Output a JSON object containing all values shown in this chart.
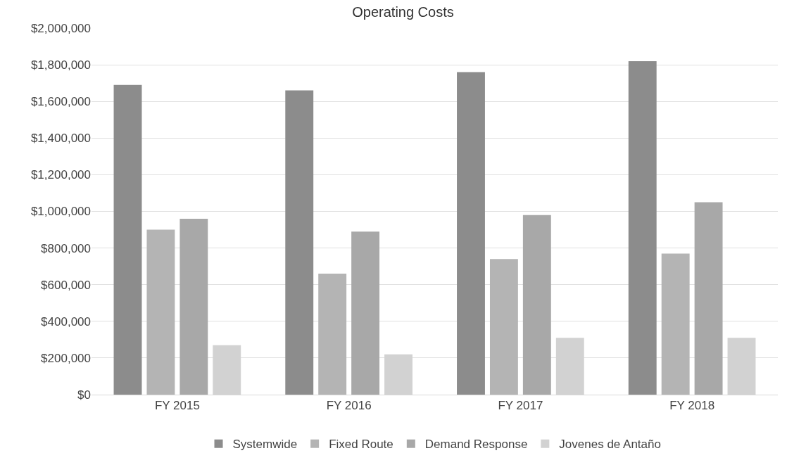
{
  "chart_data": {
    "type": "bar",
    "title": "Operating Costs",
    "categories": [
      "FY 2015",
      "FY 2016",
      "FY 2017",
      "FY 2018"
    ],
    "series": [
      {
        "name": "Systemwide",
        "color": "#8c8c8c",
        "values": [
          1690000,
          1660000,
          1760000,
          1820000
        ]
      },
      {
        "name": "Fixed Route",
        "color": "#b4b4b4",
        "values": [
          900000,
          660000,
          740000,
          770000
        ]
      },
      {
        "name": "Demand Response",
        "color": "#a8a8a8",
        "values": [
          960000,
          890000,
          980000,
          1050000
        ]
      },
      {
        "name": "Jovenes de Antaño",
        "color": "#d2d2d2",
        "values": [
          270000,
          220000,
          310000,
          310000
        ]
      }
    ],
    "ylim": [
      0,
      2000000
    ],
    "yticks": [
      {
        "value": 0,
        "label": "$0"
      },
      {
        "value": 200000,
        "label": "$200,000"
      },
      {
        "value": 400000,
        "label": "$400,000"
      },
      {
        "value": 600000,
        "label": "$600,000"
      },
      {
        "value": 800000,
        "label": "$800,000"
      },
      {
        "value": 1000000,
        "label": "$1,000,000"
      },
      {
        "value": 1200000,
        "label": "$1,200,000"
      },
      {
        "value": 1400000,
        "label": "$1,400,000"
      },
      {
        "value": 1600000,
        "label": "$1,600,000"
      },
      {
        "value": 1800000,
        "label": "$1,800,000"
      },
      {
        "value": 2000000,
        "label": "$2,000,000"
      }
    ],
    "grid": "y",
    "legend": "bottom"
  }
}
